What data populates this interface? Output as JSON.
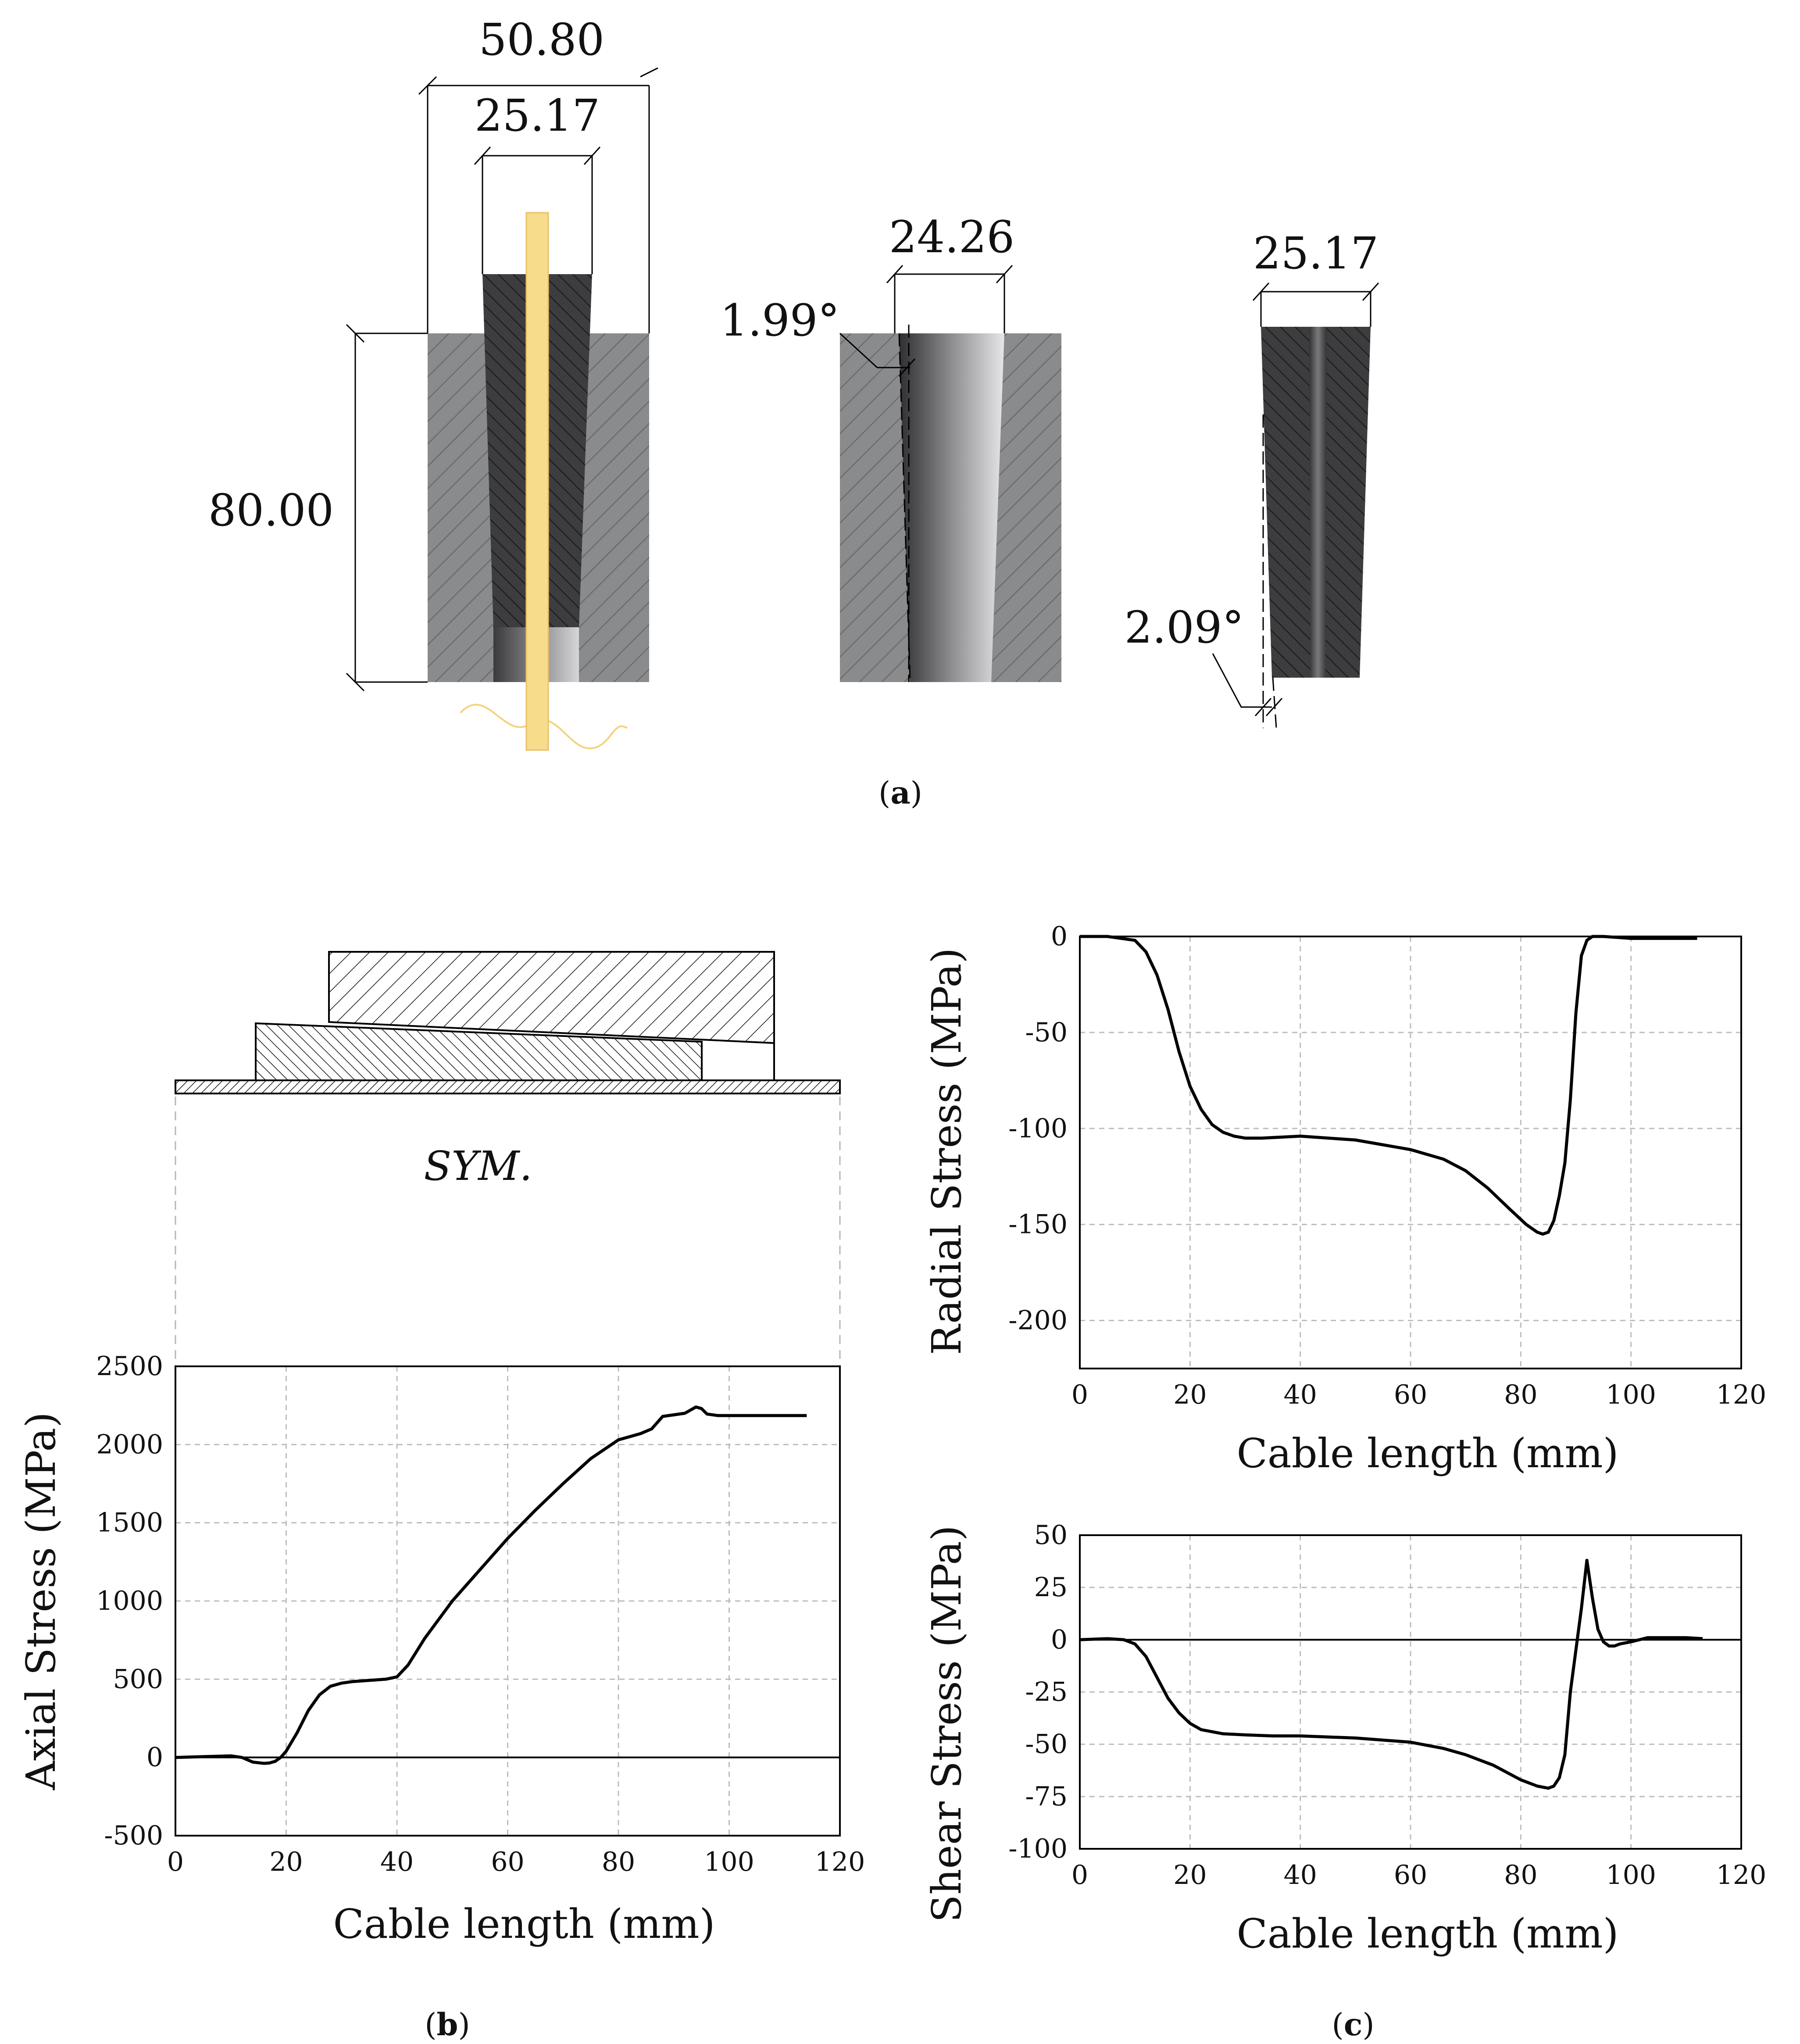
{
  "panel_a": {
    "label_open": "(",
    "label_letter": "a",
    "label_close": ")",
    "dims": {
      "outer_width": "50.80",
      "wedge_top_width": "25.17",
      "height": "80.00",
      "barrel_bore_width": "24.26",
      "barrel_angle": "1.99°",
      "wedge_width": "25.17",
      "wedge_angle": "2.09°"
    },
    "colors": {
      "barrel": "#8a8b8d",
      "wedge": "#3d3d3f",
      "strand": "#f7dc8c",
      "strand_edge": "#e9c068"
    }
  },
  "panel_b": {
    "label_open": "(",
    "label_letter": "b",
    "label_close": ")",
    "sym_label": "SYM."
  },
  "panel_c": {
    "label_open": "(",
    "label_letter": "c",
    "label_close": ")"
  },
  "chart_data": [
    {
      "id": "axial",
      "type": "line",
      "xlabel": "Cable length (mm)",
      "ylabel": "Axial Stress (MPa)",
      "xlim": [
        0,
        120
      ],
      "ylim": [
        -500,
        2500
      ],
      "xticks": [
        0,
        20,
        40,
        60,
        80,
        100,
        120
      ],
      "yticks": [
        -500,
        0,
        500,
        1000,
        1500,
        2000,
        2500
      ],
      "grid": true,
      "zero_line": true,
      "series": [
        {
          "name": "Axial stress",
          "x": [
            0,
            5,
            10,
            12,
            14,
            16,
            17,
            18,
            19,
            20,
            22,
            24,
            26,
            28,
            30,
            32,
            34,
            36,
            38,
            40,
            42,
            45,
            50,
            55,
            60,
            65,
            70,
            75,
            80,
            82,
            84,
            86,
            88,
            90,
            92,
            94,
            95,
            96,
            98,
            100,
            105,
            110,
            114
          ],
          "y": [
            0,
            5,
            10,
            0,
            -30,
            -38,
            -35,
            -25,
            0,
            40,
            160,
            300,
            400,
            455,
            475,
            485,
            490,
            495,
            500,
            515,
            590,
            760,
            1000,
            1200,
            1400,
            1580,
            1750,
            1910,
            2030,
            2050,
            2070,
            2100,
            2180,
            2190,
            2200,
            2240,
            2230,
            2195,
            2185,
            2185,
            2185,
            2185,
            2185
          ]
        }
      ]
    },
    {
      "id": "radial",
      "type": "line",
      "xlabel": "Cable length (mm)",
      "ylabel": "Radial Stress (MPa)",
      "xlim": [
        0,
        120
      ],
      "ylim": [
        -225,
        0
      ],
      "xticks": [
        0,
        20,
        40,
        60,
        80,
        100,
        120
      ],
      "yticks": [
        0,
        -50,
        -100,
        -150,
        -200
      ],
      "grid": true,
      "series": [
        {
          "name": "Radial stress",
          "x": [
            0,
            5,
            10,
            12,
            14,
            16,
            18,
            20,
            22,
            24,
            26,
            28,
            30,
            33,
            40,
            50,
            60,
            66,
            70,
            74,
            78,
            81,
            83,
            84,
            85,
            86,
            87,
            88,
            89,
            90,
            91,
            92,
            93,
            95,
            100,
            105,
            112
          ],
          "y": [
            0,
            0,
            -2,
            -8,
            -20,
            -38,
            -60,
            -78,
            -90,
            -98,
            -102,
            -104,
            -105,
            -105,
            -104,
            -106,
            -111,
            -116,
            -122,
            -131,
            -142,
            -150,
            -154,
            -155,
            -154,
            -148,
            -135,
            -118,
            -85,
            -40,
            -10,
            -2,
            0,
            0,
            -1,
            -1,
            -1
          ]
        }
      ]
    },
    {
      "id": "shear",
      "type": "line",
      "xlabel": "Cable length (mm)",
      "ylabel": "Shear Stress (MPa)",
      "xlim": [
        0,
        120
      ],
      "ylim": [
        -100,
        50
      ],
      "xticks": [
        0,
        20,
        40,
        60,
        80,
        100,
        120
      ],
      "yticks": [
        -100,
        -75,
        -50,
        -25,
        0,
        25,
        50
      ],
      "grid": true,
      "zero_line": true,
      "series": [
        {
          "name": "Shear stress",
          "x": [
            0,
            5,
            8,
            10,
            12,
            14,
            16,
            18,
            20,
            22,
            24,
            26,
            30,
            35,
            40,
            50,
            60,
            66,
            70,
            75,
            80,
            83,
            85,
            86,
            87,
            88,
            89,
            90,
            91,
            92,
            93,
            94,
            95,
            96,
            97,
            98,
            100,
            103,
            106,
            110,
            113
          ],
          "y": [
            0,
            0.5,
            0,
            -2,
            -8,
            -18,
            -28,
            -35,
            -40,
            -43,
            -44,
            -45,
            -45.5,
            -46,
            -46,
            -47,
            -49,
            -52,
            -55,
            -60,
            -67,
            -70,
            -71,
            -70,
            -66,
            -55,
            -25,
            -5,
            15,
            38,
            20,
            5,
            -1,
            -3,
            -3,
            -2,
            -1,
            1,
            1,
            1,
            0.5
          ]
        }
      ]
    }
  ]
}
